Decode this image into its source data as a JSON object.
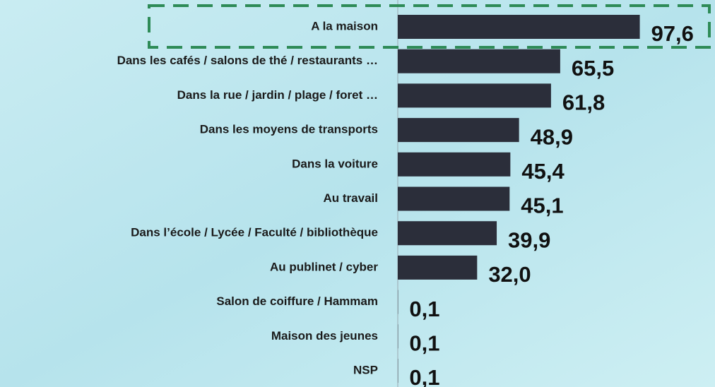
{
  "chart_data": {
    "type": "barh",
    "categories": [
      "A la maison",
      "Dans les cafés / salons de thé / restaurants …",
      "Dans la rue / jardin / plage / foret …",
      "Dans les moyens de transports",
      "Dans la voiture",
      "Au travail",
      "Dans l’école / Lycée / Faculté / bibliothèque",
      "Au publinet / cyber",
      "Salon de coiffure / Hammam",
      "Maison des jeunes",
      "NSP"
    ],
    "values": [
      97.6,
      65.5,
      61.8,
      48.9,
      45.4,
      45.1,
      39.9,
      32.0,
      0.1,
      0.1,
      0.1
    ],
    "value_labels": [
      "97,6",
      "65,5",
      "61,8",
      "48,9",
      "45,4",
      "45,1",
      "39,9",
      "32,0",
      "0,1",
      "0,1",
      "0,1"
    ],
    "color": "#2b2e3a",
    "xlim": [
      0,
      100
    ]
  }
}
